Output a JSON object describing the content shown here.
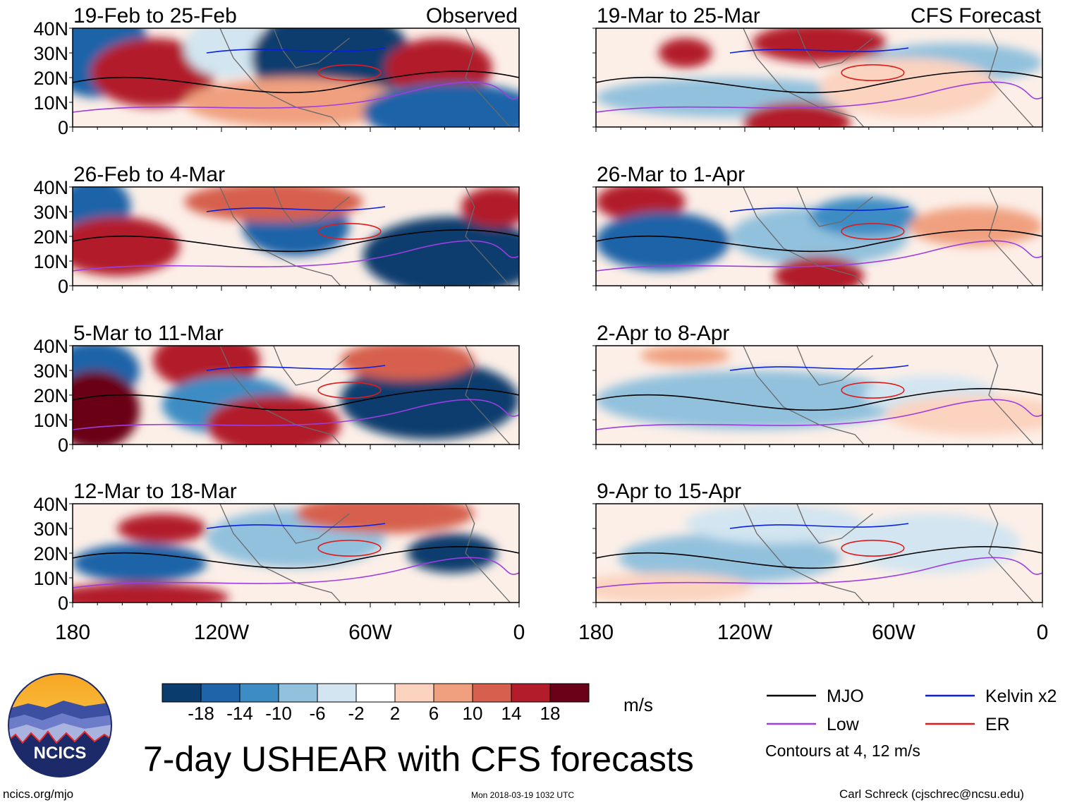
{
  "title": "7-day USHEAR with CFS forecasts",
  "footer": {
    "url": "ncics.org/mjo",
    "timestamp": "Mon 2018-03-19 1032 UTC",
    "author": "Carl Schreck (cjschrec@ncsu.edu)"
  },
  "logo": {
    "text": "NCICS"
  },
  "colorbar": {
    "units": "m/s",
    "colors": [
      "#0a3d6e",
      "#1f63a8",
      "#3d8dc4",
      "#92c1dd",
      "#d2e5f0",
      "#ffffff",
      "#fbd3bf",
      "#f0a07f",
      "#d6604d",
      "#b21c2b",
      "#6b0119"
    ],
    "ticks": [
      "-18",
      "-14",
      "-10",
      "-6",
      "-2",
      "2",
      "6",
      "10",
      "14",
      "18"
    ]
  },
  "legend": {
    "items": [
      {
        "label": "MJO",
        "color": "#000000"
      },
      {
        "label": "Kelvin x2",
        "color": "#0a1fe0"
      },
      {
        "label": "Low",
        "color": "#9d3de0"
      },
      {
        "label": "ER",
        "color": "#e11b1b"
      }
    ],
    "note": "Contours at 4, 12 m/s"
  },
  "axes": {
    "lat_labels": [
      "40N",
      "30N",
      "20N",
      "10N",
      "0"
    ],
    "lon_labels": [
      "180",
      "120W",
      "60W",
      "0"
    ]
  },
  "panels": [
    {
      "period": "19-Feb to 25-Feb",
      "label": "Observed"
    },
    {
      "period": "19-Mar to 25-Mar",
      "label": "CFS Forecast"
    },
    {
      "period": "26-Feb to 4-Mar",
      "label": ""
    },
    {
      "period": "26-Mar to 1-Apr",
      "label": ""
    },
    {
      "period": "5-Mar to 11-Mar",
      "label": ""
    },
    {
      "period": "2-Apr to 8-Apr",
      "label": ""
    },
    {
      "period": "12-Mar to 18-Mar",
      "label": ""
    },
    {
      "period": "9-Apr to 15-Apr",
      "label": ""
    }
  ]
}
